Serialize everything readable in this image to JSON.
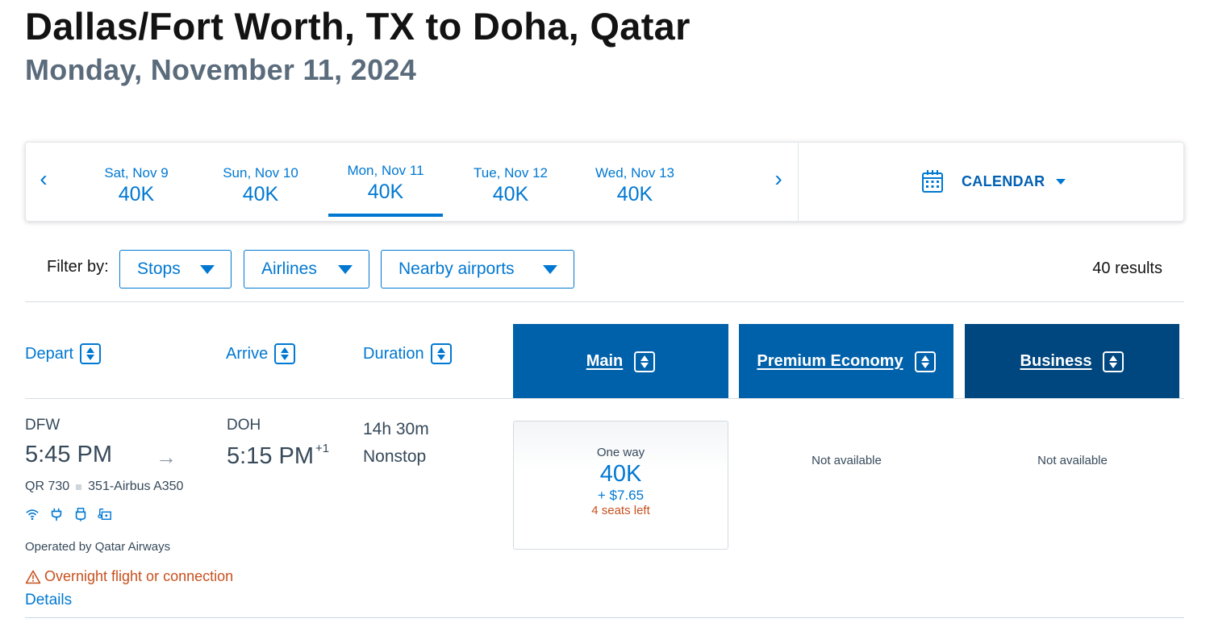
{
  "header": {
    "title": "Dallas/Fort Worth, TX to Doha, Qatar",
    "subtitle": "Monday, November 11, 2024"
  },
  "date_strip": {
    "prev_icon": "chevron-left-icon",
    "next_icon": "chevron-right-icon",
    "dates": [
      {
        "label": "Sat, Nov 9",
        "price": "40K"
      },
      {
        "label": "Sun, Nov 10",
        "price": "40K"
      },
      {
        "label": "Mon, Nov 11",
        "price": "40K",
        "selected": true
      },
      {
        "label": "Tue, Nov 12",
        "price": "40K"
      },
      {
        "label": "Wed, Nov 13",
        "price": "40K"
      }
    ],
    "calendar_label": "CALENDAR",
    "calendar_icon": "calendar-icon"
  },
  "filters": {
    "label": "Filter by:",
    "items": [
      "Stops",
      "Airlines",
      "Nearby airports"
    ],
    "results": "40 results"
  },
  "columns": {
    "depart": "Depart",
    "arrive": "Arrive",
    "duration": "Duration",
    "cabins": [
      {
        "label": "Main",
        "color": "#0061ab"
      },
      {
        "label": "Premium Economy",
        "color": "#0061ab"
      },
      {
        "label": "Business",
        "color": "#00467f"
      }
    ]
  },
  "flight": {
    "origin": "DFW",
    "depart_time": "5:45 PM",
    "destination": "DOH",
    "arrive_time": "5:15 PM",
    "day_offset": "+1",
    "flight_number": "QR 730",
    "aircraft": "351-Airbus A350",
    "amenities": [
      "wifi-icon",
      "power-outlet-icon",
      "usb-icon",
      "entertainment-icon"
    ],
    "operated_by": "Operated by Qatar Airways",
    "warning": "Overnight flight or connection",
    "details_label": "Details",
    "duration": "14h 30m",
    "stops": "Nonstop",
    "fares": {
      "main": {
        "type": "One way",
        "price": "40K",
        "tax": "+ $7.65",
        "seats": "4 seats left"
      },
      "premium_economy": "Not available",
      "business": "Not available"
    }
  },
  "colors": {
    "accent": "#0078d2",
    "warning": "#c8501e",
    "cabin_main": "#0061ab",
    "cabin_business": "#00467f"
  }
}
